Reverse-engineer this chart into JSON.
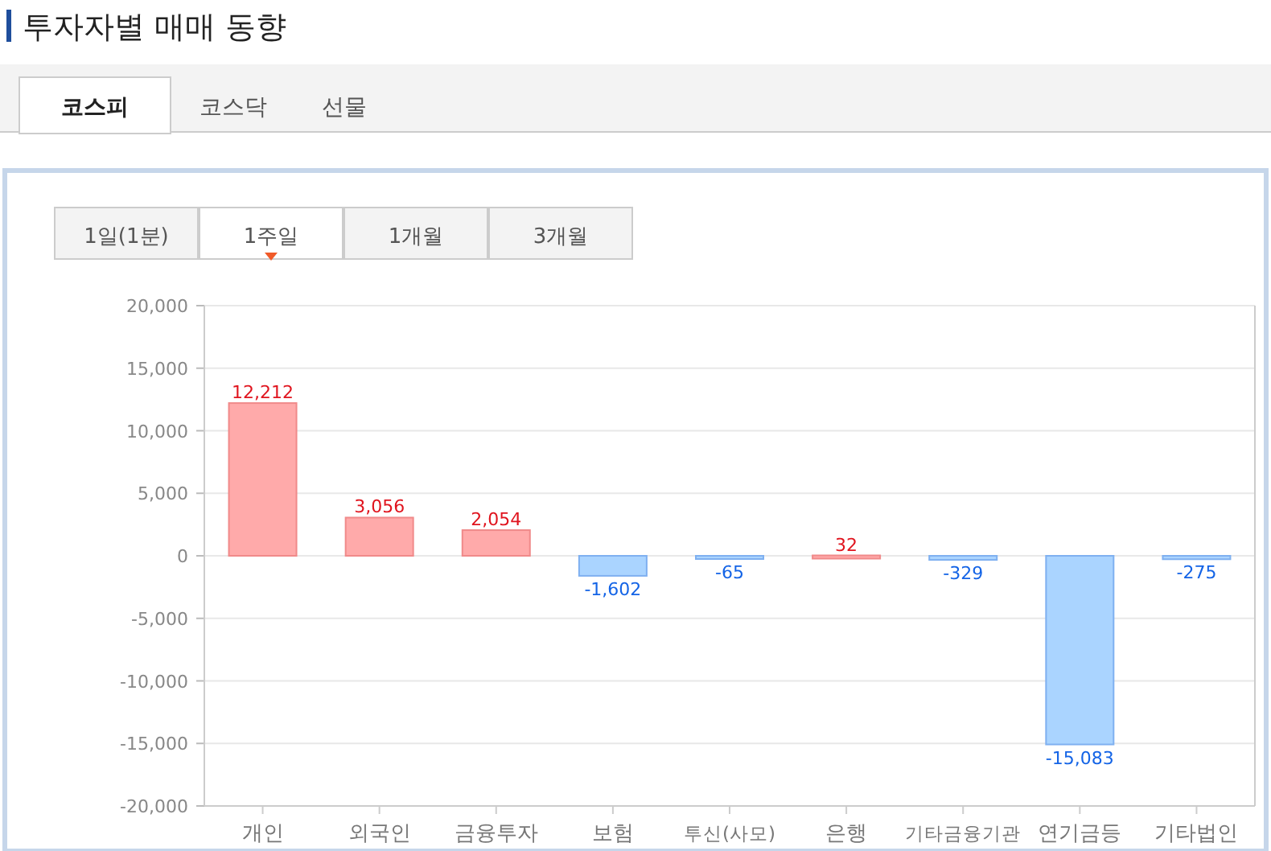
{
  "chart_data": {
    "type": "bar",
    "title": "투자자별 매매 동향",
    "annotations": [
      "코스피",
      "코스닥",
      "선물",
      "1일(1분)",
      "1주일",
      "1개월",
      "3개월"
    ],
    "categories": [
      "개인",
      "외국인",
      "금융투자",
      "보험",
      "투신(사모)",
      "은행",
      "기타금융기관",
      "연기금등",
      "기타법인"
    ],
    "values": [
      12212,
      3056,
      2054,
      -1602,
      -65,
      32,
      -329,
      -15083,
      -275
    ],
    "colors": [
      "#ffaaaa",
      "#ffaaaa",
      "#ffaaaa",
      "#aad4ff",
      "#aad4ff",
      "#ffaaaa",
      "#aad4ff",
      "#aad4ff",
      "#aad4ff"
    ],
    "value_labels": [
      "12,212",
      "3,056",
      "2,054",
      "-1,602",
      "-65",
      "32",
      "-329",
      "-15,083",
      "-275"
    ],
    "ylim": [
      -20000,
      20000
    ],
    "yticks": [
      {
        "value": -20000,
        "label": "-20,000"
      },
      {
        "value": -15000,
        "label": "-15,000"
      },
      {
        "value": -10000,
        "label": "-10,000"
      },
      {
        "value": -5000,
        "label": "-5,000"
      },
      0,
      {
        "value": 5000,
        "label": "5,000"
      },
      {
        "value": 10000,
        "label": "10,000"
      },
      {
        "value": 15000,
        "label": "15,000"
      },
      {
        "value": 20000,
        "label": "20,000"
      }
    ],
    "grid": "y"
  }
}
